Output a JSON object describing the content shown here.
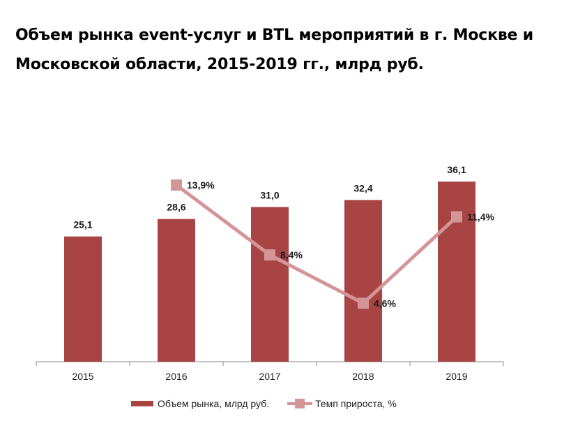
{
  "title": "Объем рынка event-услуг и BTL мероприятий в г. Москве и Московской области, 2015-2019 гг., млрд руб.",
  "colors": {
    "bar": "#a84444",
    "line": "#d49597"
  },
  "chart_data": {
    "type": "bar+line",
    "categories": [
      "2015",
      "2016",
      "2017",
      "2018",
      "2019"
    ],
    "series": [
      {
        "name": "Объем рынка, млрд руб.",
        "kind": "bar",
        "values": [
          25.1,
          28.6,
          31.0,
          32.4,
          36.1
        ],
        "labels": [
          "25,1",
          "28,6",
          "31,0",
          "32,4",
          "36,1"
        ]
      },
      {
        "name": "Темп прироста, %",
        "kind": "line",
        "values": [
          null,
          13.9,
          8.4,
          4.6,
          11.4
        ],
        "labels": [
          "",
          "13,9%",
          "8,4%",
          "4,6%",
          "11,4%"
        ]
      }
    ],
    "ylim_bar": [
      0,
      36.1
    ],
    "ylim_line": [
      0,
      20
    ],
    "grid": false,
    "legend": [
      "Объем рынка, млрд руб.",
      "Темп прироста, %"
    ],
    "legend_position": "bottom"
  }
}
